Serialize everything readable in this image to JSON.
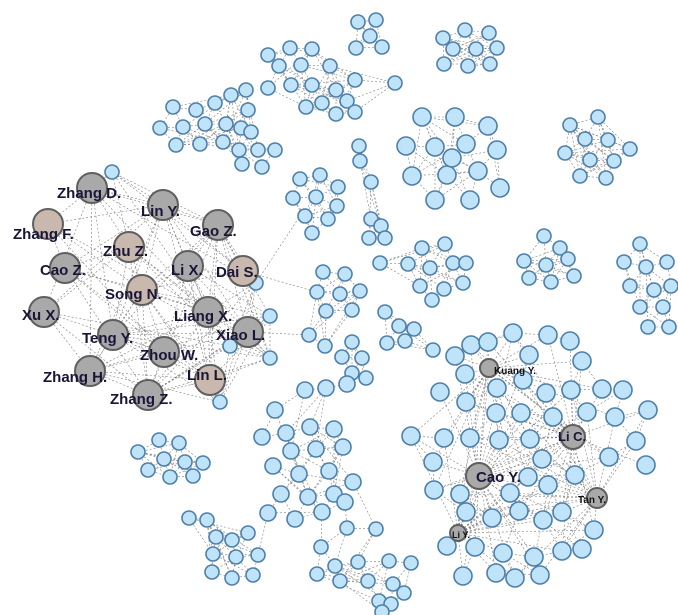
{
  "labels": {
    "zhang_d": "Zhang D.",
    "lin_y": "Lin Y.",
    "zhang_f": "Zhang F.",
    "gao_z": "Gao Z.",
    "zhu_z": "Zhu Z.",
    "cao_z": "Cao Z.",
    "li_x": "Li X.",
    "dai_s": "Dai S.",
    "song_n": "Song N.",
    "xu_x": "Xu X.",
    "liang_x": "Liang X.",
    "teng_y": "Teng Y.",
    "xiao_l": "Xiao L.",
    "zhou_w": "Zhou W.",
    "zhang_h": "Zhang H.",
    "lin_l": "Lin L.",
    "zhang_z": "Zhang Z.",
    "kuang_y": "Kuang Y.",
    "li_c": "Li C.",
    "cao_y": "Cao Y.",
    "tan_y": "Tan Y.",
    "li_y": "Li Y."
  },
  "colors": {
    "node_fill": "#bfe3f8",
    "node_stroke": "#4e7fa8",
    "hub_fill": "#a9a9a9",
    "hub_tan_fill": "#c9b8ad",
    "label_color": "#191538"
  }
}
